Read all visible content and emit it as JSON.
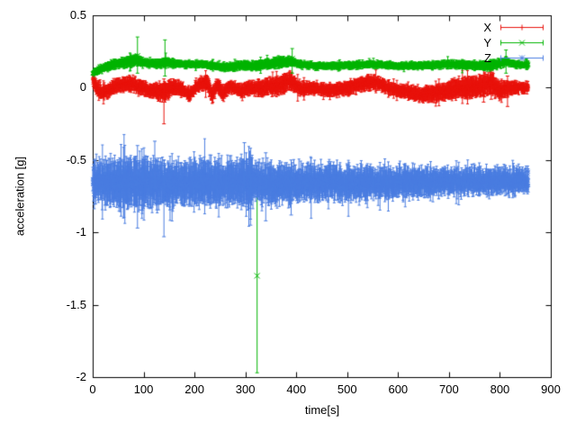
{
  "chart_data": {
    "type": "scatter",
    "style": "points-with-errorbars",
    "title": "",
    "xlabel": "time[s]",
    "ylabel": "acceleration [g]",
    "xlim": [
      0,
      900
    ],
    "ylim": [
      -2,
      0.5
    ],
    "grid": false,
    "legend_position": "top-right-inside",
    "background_color": "#ffffff",
    "border_color": "#000000",
    "text_color": "#000000",
    "xticks": [
      0,
      100,
      200,
      300,
      400,
      500,
      600,
      700,
      800,
      900
    ],
    "xtick_labels": [
      "0",
      "100",
      "200",
      "300",
      "400",
      "500",
      "600",
      "700",
      "800",
      "900"
    ],
    "yticks": [
      0.5,
      0,
      -0.5,
      -1,
      -1.5,
      -2
    ],
    "ytick_labels": [
      "0.5",
      "0",
      "-0.5",
      "-1",
      "-1.5",
      "-2"
    ],
    "series": [
      {
        "name": "X",
        "color": "#e8130c",
        "marker": "plus",
        "seed": 101,
        "t_start": 0,
        "t_end": 856,
        "t_step": 0.4,
        "noise_sd": 0.008,
        "trend": [
          [
            0,
            0.06
          ],
          [
            8,
            0.0
          ],
          [
            18,
            -0.035
          ],
          [
            30,
            -0.02
          ],
          [
            45,
            0.015
          ],
          [
            60,
            0.02
          ],
          [
            75,
            0.03
          ],
          [
            95,
            0.0
          ],
          [
            115,
            -0.02
          ],
          [
            138,
            -0.03
          ],
          [
            155,
            0.0
          ],
          [
            175,
            -0.01
          ],
          [
            190,
            -0.05
          ],
          [
            205,
            0.015
          ],
          [
            225,
            0.035
          ],
          [
            235,
            -0.055
          ],
          [
            245,
            0.02
          ],
          [
            255,
            -0.04
          ],
          [
            270,
            0.01
          ],
          [
            290,
            -0.02
          ],
          [
            310,
            0.0
          ],
          [
            330,
            -0.005
          ],
          [
            350,
            0.01
          ],
          [
            370,
            0.02
          ],
          [
            388,
            0.05
          ],
          [
            400,
            0.01
          ],
          [
            410,
            -0.01
          ],
          [
            425,
            0.0
          ],
          [
            445,
            -0.01
          ],
          [
            465,
            -0.02
          ],
          [
            485,
            -0.01
          ],
          [
            505,
            0.0
          ],
          [
            520,
            0.015
          ],
          [
            550,
            0.04
          ],
          [
            575,
            0.01
          ],
          [
            595,
            -0.02
          ],
          [
            615,
            -0.025
          ],
          [
            645,
            -0.05
          ],
          [
            675,
            -0.035
          ],
          [
            695,
            -0.025
          ],
          [
            715,
            -0.005
          ],
          [
            735,
            0.0
          ],
          [
            760,
            0.01
          ],
          [
            783,
            0.03
          ],
          [
            800,
            -0.02
          ],
          [
            820,
            0.0
          ],
          [
            856,
            0.0
          ]
        ],
        "err_profile": [
          [
            0,
            0.03
          ],
          [
            120,
            0.03
          ],
          [
            140,
            0.045
          ],
          [
            180,
            0.025
          ],
          [
            230,
            0.035
          ],
          [
            280,
            0.025
          ],
          [
            380,
            0.04
          ],
          [
            420,
            0.025
          ],
          [
            540,
            0.03
          ],
          [
            600,
            0.025
          ],
          [
            740,
            0.045
          ],
          [
            790,
            0.045
          ],
          [
            820,
            0.03
          ],
          [
            856,
            0.02
          ]
        ],
        "outliers": [
          {
            "t": 140,
            "y": -0.07,
            "lo": -0.25,
            "hi": 0.06
          },
          {
            "t": 768,
            "y": 0.02,
            "lo": -0.1,
            "hi": 0.13
          },
          {
            "t": 783,
            "y": 0.03,
            "lo": -0.08,
            "hi": 0.12
          },
          {
            "t": 815,
            "y": -0.01,
            "lo": -0.13,
            "hi": 0.08
          }
        ]
      },
      {
        "name": "Y",
        "color": "#00b400",
        "marker": "times",
        "seed": 202,
        "t_start": 0,
        "t_end": 856,
        "t_step": 0.4,
        "noise_sd": 0.006,
        "trend": [
          [
            0,
            0.1
          ],
          [
            10,
            0.115
          ],
          [
            25,
            0.145
          ],
          [
            45,
            0.165
          ],
          [
            65,
            0.175
          ],
          [
            85,
            0.19
          ],
          [
            105,
            0.17
          ],
          [
            130,
            0.165
          ],
          [
            142,
            0.18
          ],
          [
            160,
            0.17
          ],
          [
            185,
            0.16
          ],
          [
            215,
            0.165
          ],
          [
            240,
            0.15
          ],
          [
            265,
            0.14
          ],
          [
            290,
            0.155
          ],
          [
            320,
            0.15
          ],
          [
            345,
            0.165
          ],
          [
            370,
            0.175
          ],
          [
            392,
            0.18
          ],
          [
            410,
            0.16
          ],
          [
            440,
            0.15
          ],
          [
            470,
            0.15
          ],
          [
            500,
            0.155
          ],
          [
            530,
            0.16
          ],
          [
            560,
            0.16
          ],
          [
            590,
            0.15
          ],
          [
            620,
            0.15
          ],
          [
            650,
            0.155
          ],
          [
            680,
            0.16
          ],
          [
            710,
            0.16
          ],
          [
            740,
            0.155
          ],
          [
            770,
            0.15
          ],
          [
            800,
            0.165
          ],
          [
            812,
            0.185
          ],
          [
            830,
            0.16
          ],
          [
            856,
            0.16
          ]
        ],
        "err_profile": [
          [
            0,
            0.012
          ],
          [
            80,
            0.025
          ],
          [
            100,
            0.015
          ],
          [
            140,
            0.02
          ],
          [
            200,
            0.012
          ],
          [
            380,
            0.022
          ],
          [
            400,
            0.014
          ],
          [
            600,
            0.012
          ],
          [
            800,
            0.02
          ],
          [
            830,
            0.012
          ],
          [
            856,
            0.012
          ]
        ],
        "outliers": [
          {
            "t": 88,
            "y": 0.22,
            "lo": 0.1,
            "hi": 0.35
          },
          {
            "t": 142,
            "y": 0.19,
            "lo": 0.08,
            "hi": 0.33
          },
          {
            "t": 392,
            "y": 0.2,
            "lo": 0.1,
            "hi": 0.27
          },
          {
            "t": 812,
            "y": 0.19,
            "lo": 0.1,
            "hi": 0.26
          },
          {
            "t": 323,
            "y": -1.3,
            "lo": -1.97,
            "hi": -0.64
          }
        ]
      },
      {
        "name": "Z",
        "color": "#4a7de0",
        "marker": "star",
        "seed": 303,
        "t_start": 0,
        "t_end": 856,
        "t_step": 0.4,
        "noise_sd": 0.025,
        "trend": [
          [
            0,
            -0.66
          ],
          [
            30,
            -0.655
          ],
          [
            60,
            -0.66
          ],
          [
            90,
            -0.66
          ],
          [
            120,
            -0.655
          ],
          [
            150,
            -0.665
          ],
          [
            180,
            -0.66
          ],
          [
            210,
            -0.655
          ],
          [
            240,
            -0.66
          ],
          [
            270,
            -0.655
          ],
          [
            300,
            -0.65
          ],
          [
            330,
            -0.66
          ],
          [
            360,
            -0.665
          ],
          [
            390,
            -0.66
          ],
          [
            420,
            -0.66
          ],
          [
            450,
            -0.655
          ],
          [
            480,
            -0.66
          ],
          [
            510,
            -0.66
          ],
          [
            540,
            -0.655
          ],
          [
            570,
            -0.66
          ],
          [
            600,
            -0.655
          ],
          [
            630,
            -0.65
          ],
          [
            660,
            -0.655
          ],
          [
            690,
            -0.65
          ],
          [
            720,
            -0.65
          ],
          [
            750,
            -0.645
          ],
          [
            780,
            -0.65
          ],
          [
            810,
            -0.645
          ],
          [
            840,
            -0.64
          ],
          [
            856,
            -0.64
          ]
        ],
        "err_profile": [
          [
            0,
            0.08
          ],
          [
            60,
            0.1
          ],
          [
            100,
            0.11
          ],
          [
            160,
            0.09
          ],
          [
            250,
            0.09
          ],
          [
            300,
            0.1
          ],
          [
            330,
            0.08
          ],
          [
            450,
            0.07
          ],
          [
            600,
            0.06
          ],
          [
            700,
            0.05
          ],
          [
            856,
            0.05
          ]
        ],
        "outliers": [
          {
            "t": 88,
            "y": -0.66,
            "lo": -0.97,
            "hi": -0.4
          },
          {
            "t": 122,
            "y": -0.55,
            "lo": -0.7,
            "hi": -0.37
          },
          {
            "t": 140,
            "y": -0.72,
            "lo": -1.03,
            "hi": -0.5
          },
          {
            "t": 298,
            "y": -0.6,
            "lo": -0.8,
            "hi": -0.38
          },
          {
            "t": 310,
            "y": -0.7,
            "lo": -0.95,
            "hi": -0.48
          },
          {
            "t": 340,
            "y": -0.68,
            "lo": -0.92,
            "hi": -0.45
          },
          {
            "t": 390,
            "y": -0.68,
            "lo": -0.88,
            "hi": -0.5
          }
        ]
      }
    ]
  }
}
